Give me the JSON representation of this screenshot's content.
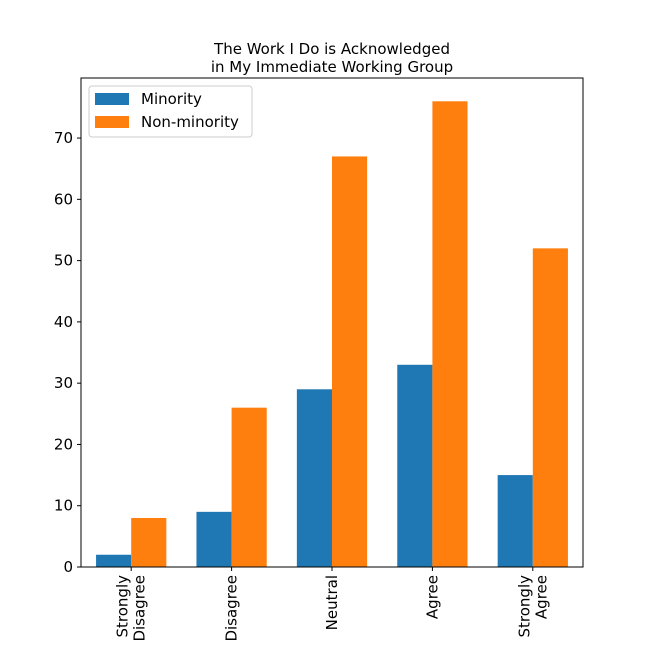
{
  "chart_data": {
    "type": "bar",
    "title": [
      "The Work I Do is Acknowledged",
      "in My Immediate Working Group"
    ],
    "categories": [
      [
        "Strongly",
        "Disagree"
      ],
      [
        "Disagree"
      ],
      [
        "Neutral"
      ],
      [
        "Agree"
      ],
      [
        "Strongly",
        "Agree"
      ]
    ],
    "series": [
      {
        "name": "Minority",
        "values": [
          2,
          9,
          29,
          33,
          15
        ],
        "color": "#1f77b4"
      },
      {
        "name": "Non-minority",
        "values": [
          8,
          26,
          67,
          76,
          52
        ],
        "color": "#ff7f0e"
      }
    ],
    "ylim": [
      0,
      79.8
    ],
    "yticks": [
      0,
      10,
      20,
      30,
      40,
      50,
      60,
      70
    ],
    "xlabel": "",
    "ylabel": "",
    "grid": false,
    "legend": "top-left"
  }
}
